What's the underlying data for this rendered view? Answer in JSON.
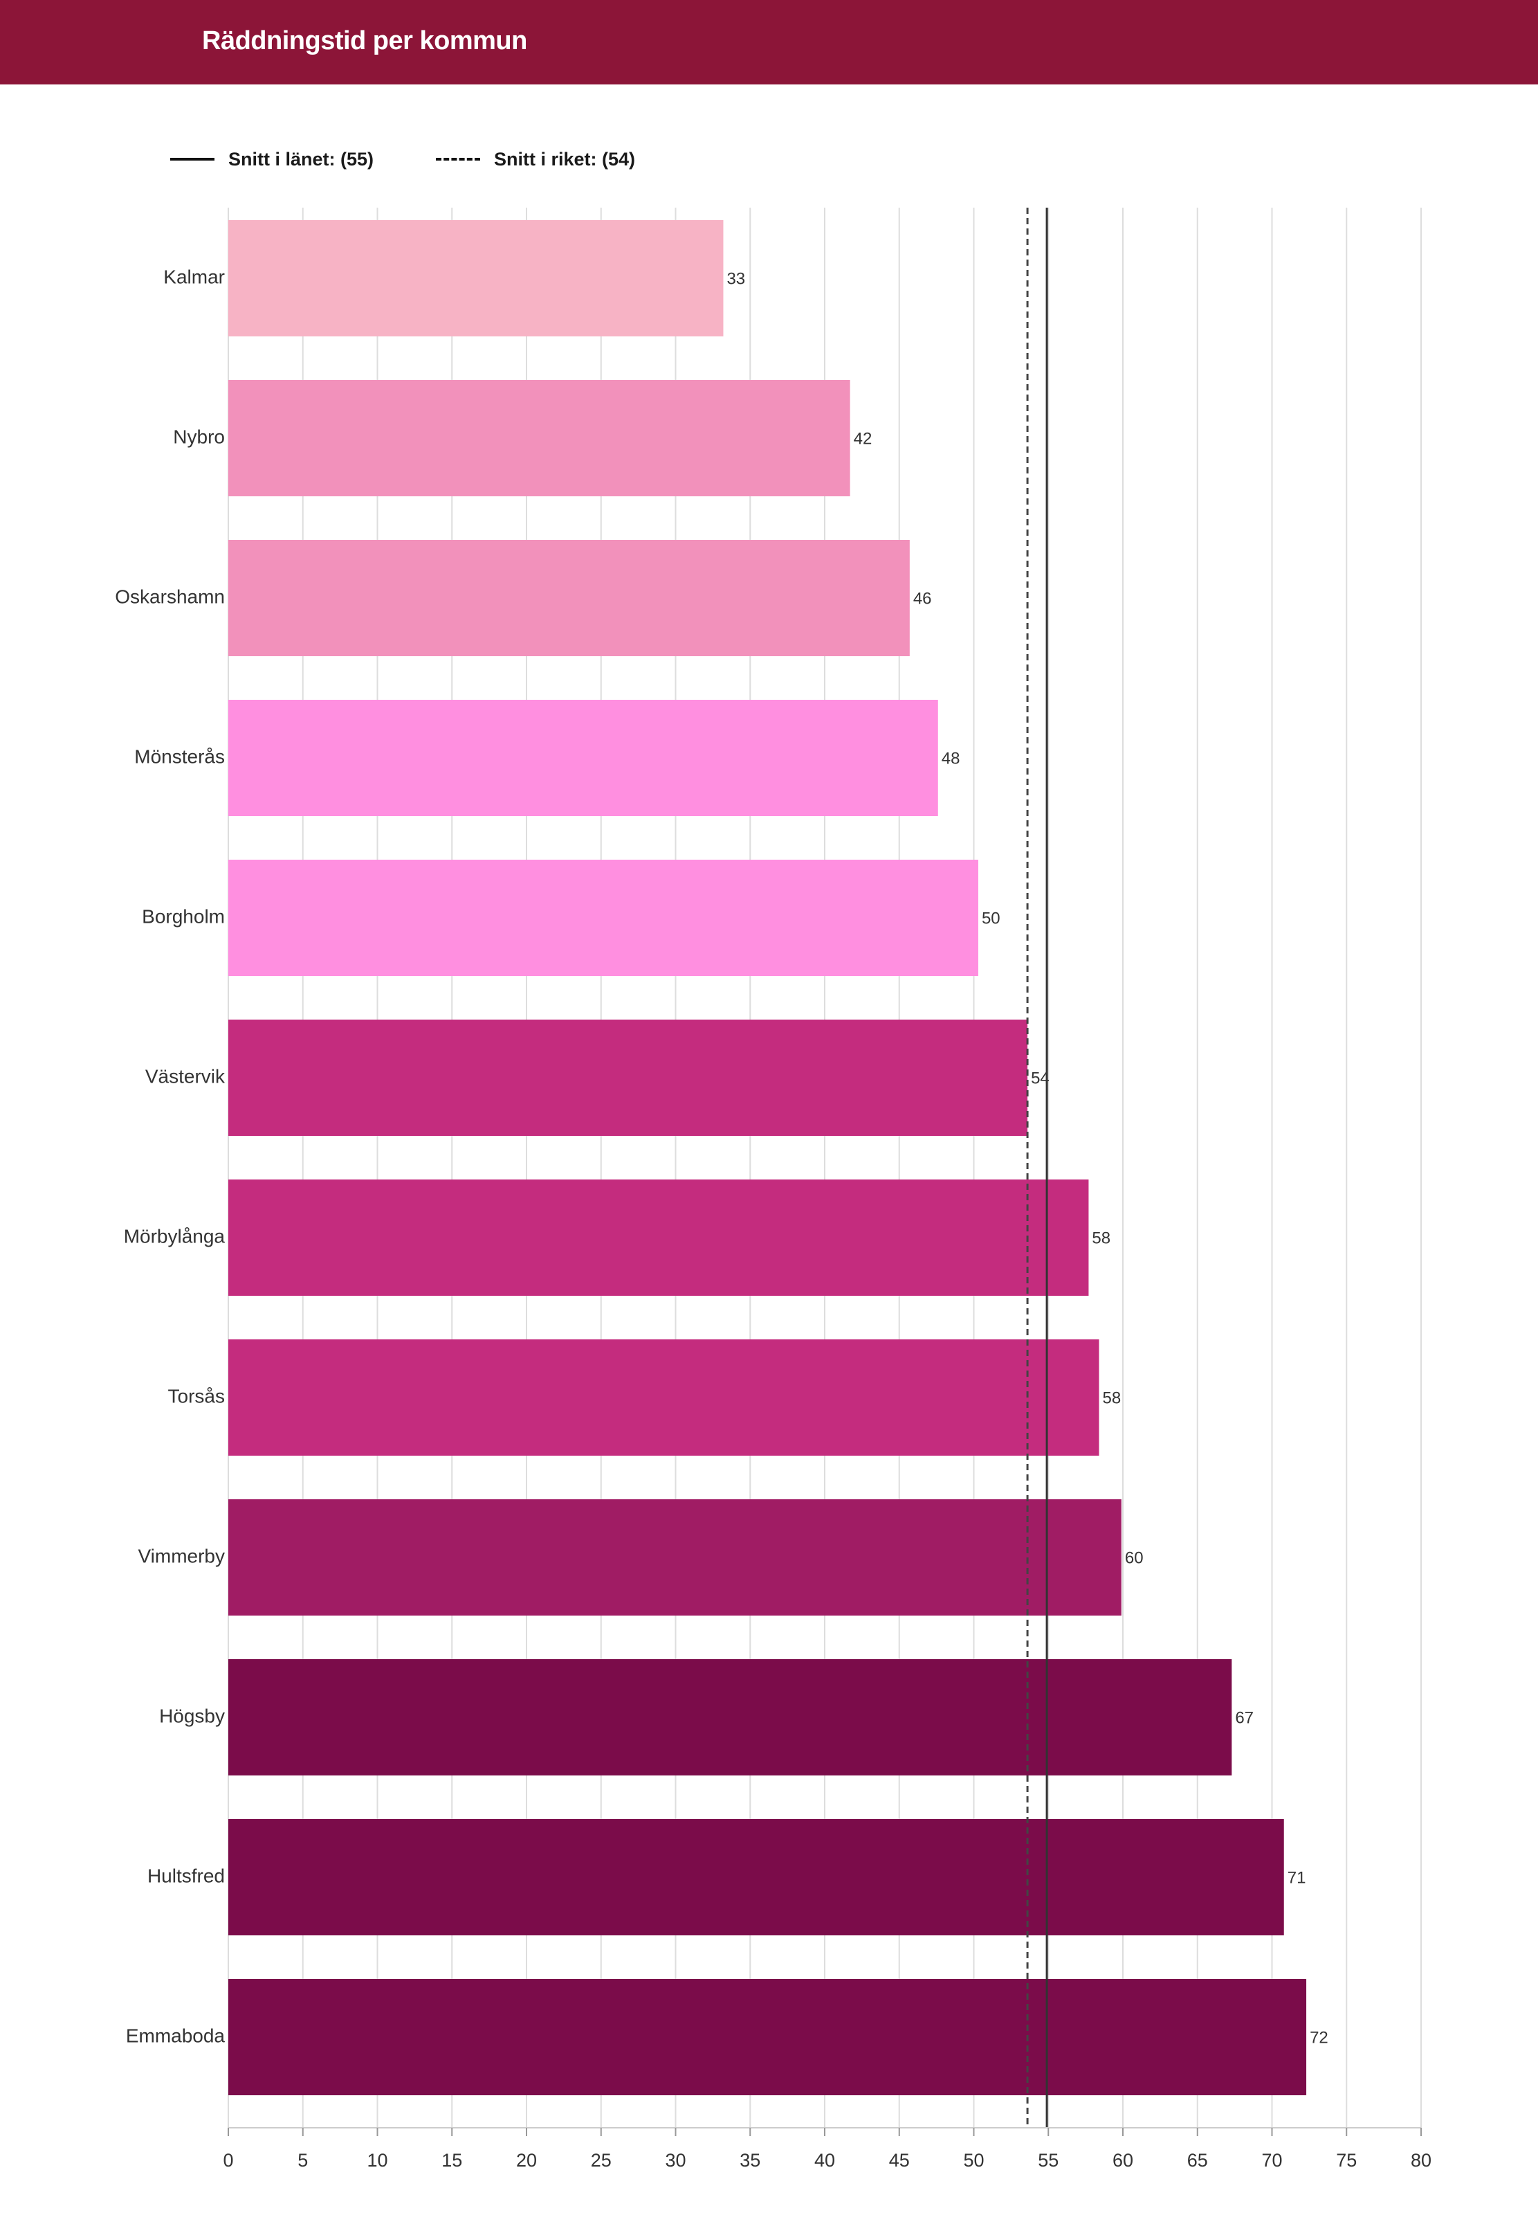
{
  "header": {
    "title": "Räddningstid per kommun"
  },
  "legend": {
    "county_avg_label": "Snitt i länet: (55)",
    "national_avg_label": "Snitt i riket: (54)"
  },
  "chart_data": {
    "type": "bar",
    "orientation": "horizontal",
    "title": "Räddningstid per kommun",
    "categories": [
      "Kalmar",
      "Nybro",
      "Oskarshamn",
      "Mönsterås",
      "Borgholm",
      "Västervik",
      "Mörbylånga",
      "Torsås",
      "Vimmerby",
      "Högsby",
      "Hultsfred",
      "Emmaboda"
    ],
    "values": [
      33.2,
      41.7,
      45.7,
      47.6,
      50.3,
      53.6,
      57.7,
      58.4,
      59.9,
      67.3,
      70.8,
      72.3
    ],
    "value_labels": [
      "33",
      "42",
      "46",
      "48",
      "50",
      "54",
      "58",
      "58",
      "60",
      "67",
      "71",
      "72"
    ],
    "bar_colors": [
      "#f7b3c5",
      "#f291bb",
      "#f291bb",
      "#ff8fe0",
      "#ff8fe0",
      "#c42c7e",
      "#c42c7e",
      "#c42c7e",
      "#a01c64",
      "#7b0c4a",
      "#7b0c4a",
      "#7b0c4a"
    ],
    "xlim": [
      0,
      80
    ],
    "xticks": [
      0,
      5,
      10,
      15,
      20,
      25,
      30,
      35,
      40,
      45,
      50,
      55,
      60,
      65,
      70,
      75,
      80
    ],
    "grid": true,
    "reference_lines": [
      {
        "name": "Snitt i länet",
        "value": 54.9,
        "style": "solid"
      },
      {
        "name": "Snitt i riket",
        "value": 53.6,
        "style": "dashed"
      }
    ]
  }
}
